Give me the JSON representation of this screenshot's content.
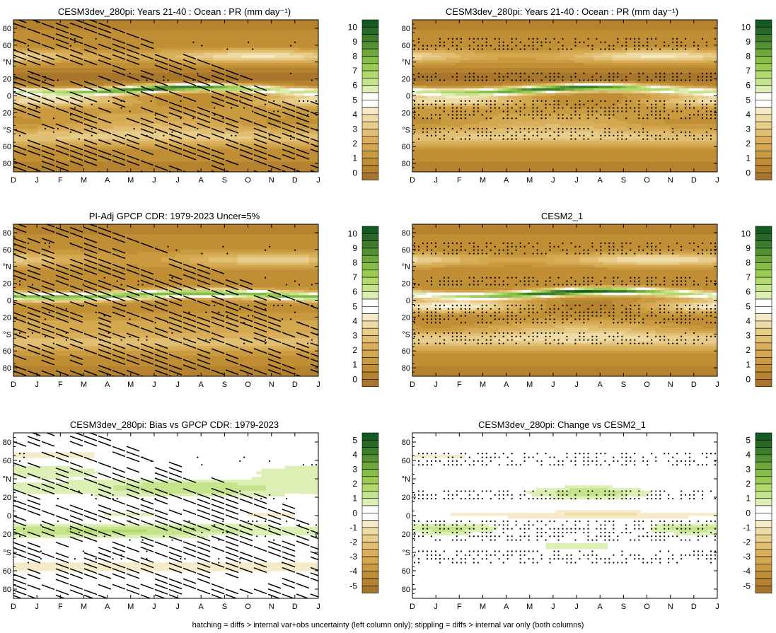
{
  "footer": "hatching = diffs > internal var+obs uncertainty (left column only); stippling = diffs > internal var only (both columns)",
  "palettes": {
    "brown_green": [
      "#a8752c",
      "#b5832f",
      "#c08f35",
      "#c99a3f",
      "#d3a84f",
      "#daae5b",
      "#e0be72",
      "#e8cc8a",
      "#efdba6",
      "#f6ebc8",
      "#ffffff",
      "#ffffff",
      "#dcefb4",
      "#c6e48e",
      "#b2d96c",
      "#9ccb55",
      "#86bd46",
      "#6fa93c",
      "#539232",
      "#3c7d2c",
      "#286826",
      "#155a22"
    ]
  },
  "chart_data": [
    {
      "type": "heatmap",
      "panel": "a",
      "title": "CESM3dev_280pi: Years 21-40 : Ocean : PR (mm day⁻¹)",
      "months": [
        "D",
        "J",
        "F",
        "M",
        "A",
        "M",
        "J",
        "J",
        "A",
        "S",
        "O",
        "N",
        "D",
        "J"
      ],
      "y_ticks": [
        "80",
        "60",
        "°N",
        "20",
        "0",
        "20",
        "°S",
        "60",
        "80"
      ],
      "ylim": [
        -90,
        90
      ],
      "colorbar": [
        "10",
        "9",
        "8",
        "7",
        "6",
        "5",
        "4",
        "3",
        "2",
        "1",
        "0"
      ],
      "clim": [
        0,
        10.5
      ],
      "field": "clim_v3",
      "hatching": true,
      "stippling": true
    },
    {
      "type": "heatmap",
      "panel": "b",
      "title": "CESM3dev_280pi: Years 21-40 : Ocean : PR (mm day⁻¹)",
      "months": [
        "D",
        "J",
        "F",
        "M",
        "A",
        "M",
        "J",
        "J",
        "A",
        "S",
        "O",
        "N",
        "D",
        "J"
      ],
      "y_ticks": [
        "80",
        "60",
        "°N",
        "20",
        "0",
        "20",
        "°S",
        "60",
        "80"
      ],
      "ylim": [
        -90,
        90
      ],
      "colorbar": [
        "10",
        "9",
        "8",
        "7",
        "6",
        "5",
        "4",
        "3",
        "2",
        "1",
        "0"
      ],
      "clim": [
        0,
        10.5
      ],
      "field": "clim_v3",
      "hatching": false,
      "stippling": true
    },
    {
      "type": "heatmap",
      "panel": "c",
      "title": "PI-Adj GPCP CDR: 1979-2023 Uncer=5%",
      "months": [
        "D",
        "J",
        "F",
        "M",
        "A",
        "M",
        "J",
        "J",
        "A",
        "S",
        "O",
        "N",
        "D",
        "J"
      ],
      "y_ticks": [
        "80",
        "60",
        "°N",
        "20",
        "0",
        "20",
        "°S",
        "60",
        "80"
      ],
      "ylim": [
        -90,
        90
      ],
      "colorbar": [
        "10",
        "9",
        "8",
        "7",
        "6",
        "5",
        "4",
        "3",
        "2",
        "1",
        "0"
      ],
      "clim": [
        0,
        10.5
      ],
      "field": "clim_obs",
      "hatching": true,
      "stippling": true
    },
    {
      "type": "heatmap",
      "panel": "d",
      "title": "CESM2_1",
      "months": [
        "D",
        "J",
        "F",
        "M",
        "A",
        "M",
        "J",
        "J",
        "A",
        "S",
        "O",
        "N",
        "D",
        "J"
      ],
      "y_ticks": [
        "80",
        "60",
        "°N",
        "20",
        "0",
        "20",
        "°S",
        "60",
        "80"
      ],
      "ylim": [
        -90,
        90
      ],
      "colorbar": [
        "10",
        "9",
        "8",
        "7",
        "6",
        "5",
        "4",
        "3",
        "2",
        "1",
        "0"
      ],
      "clim": [
        0,
        10.5
      ],
      "field": "clim_v2",
      "hatching": false,
      "stippling": true
    },
    {
      "type": "heatmap",
      "panel": "e",
      "title": "CESM3dev_280pi: Bias vs GPCP CDR: 1979-2023",
      "months": [
        "D",
        "J",
        "F",
        "M",
        "A",
        "M",
        "J",
        "J",
        "A",
        "S",
        "O",
        "N",
        "D",
        "J"
      ],
      "y_ticks": [
        "80",
        "60",
        "°N",
        "20",
        "0",
        "20",
        "°S",
        "60",
        "80"
      ],
      "ylim": [
        -90,
        90
      ],
      "colorbar": [
        "5",
        "4",
        "3",
        "2",
        "1",
        "0",
        "-1",
        "-2",
        "-3",
        "-4",
        "-5"
      ],
      "clim": [
        -5.5,
        5.5
      ],
      "field": "bias",
      "hatching": true,
      "stippling": true
    },
    {
      "type": "heatmap",
      "panel": "f",
      "title": "CESM3dev_280pi: Change vs CESM2_1",
      "months": [
        "D",
        "J",
        "F",
        "M",
        "A",
        "M",
        "J",
        "J",
        "A",
        "S",
        "O",
        "N",
        "D",
        "J"
      ],
      "y_ticks": [
        "80",
        "60",
        "°N",
        "20",
        "0",
        "20",
        "°S",
        "60",
        "80"
      ],
      "ylim": [
        -90,
        90
      ],
      "colorbar": [
        "5",
        "4",
        "3",
        "2",
        "1",
        "0",
        "-1",
        "-2",
        "-3",
        "-4",
        "-5"
      ],
      "clim": [
        -5.5,
        5.5
      ],
      "field": "change",
      "hatching": false,
      "stippling": true
    }
  ]
}
